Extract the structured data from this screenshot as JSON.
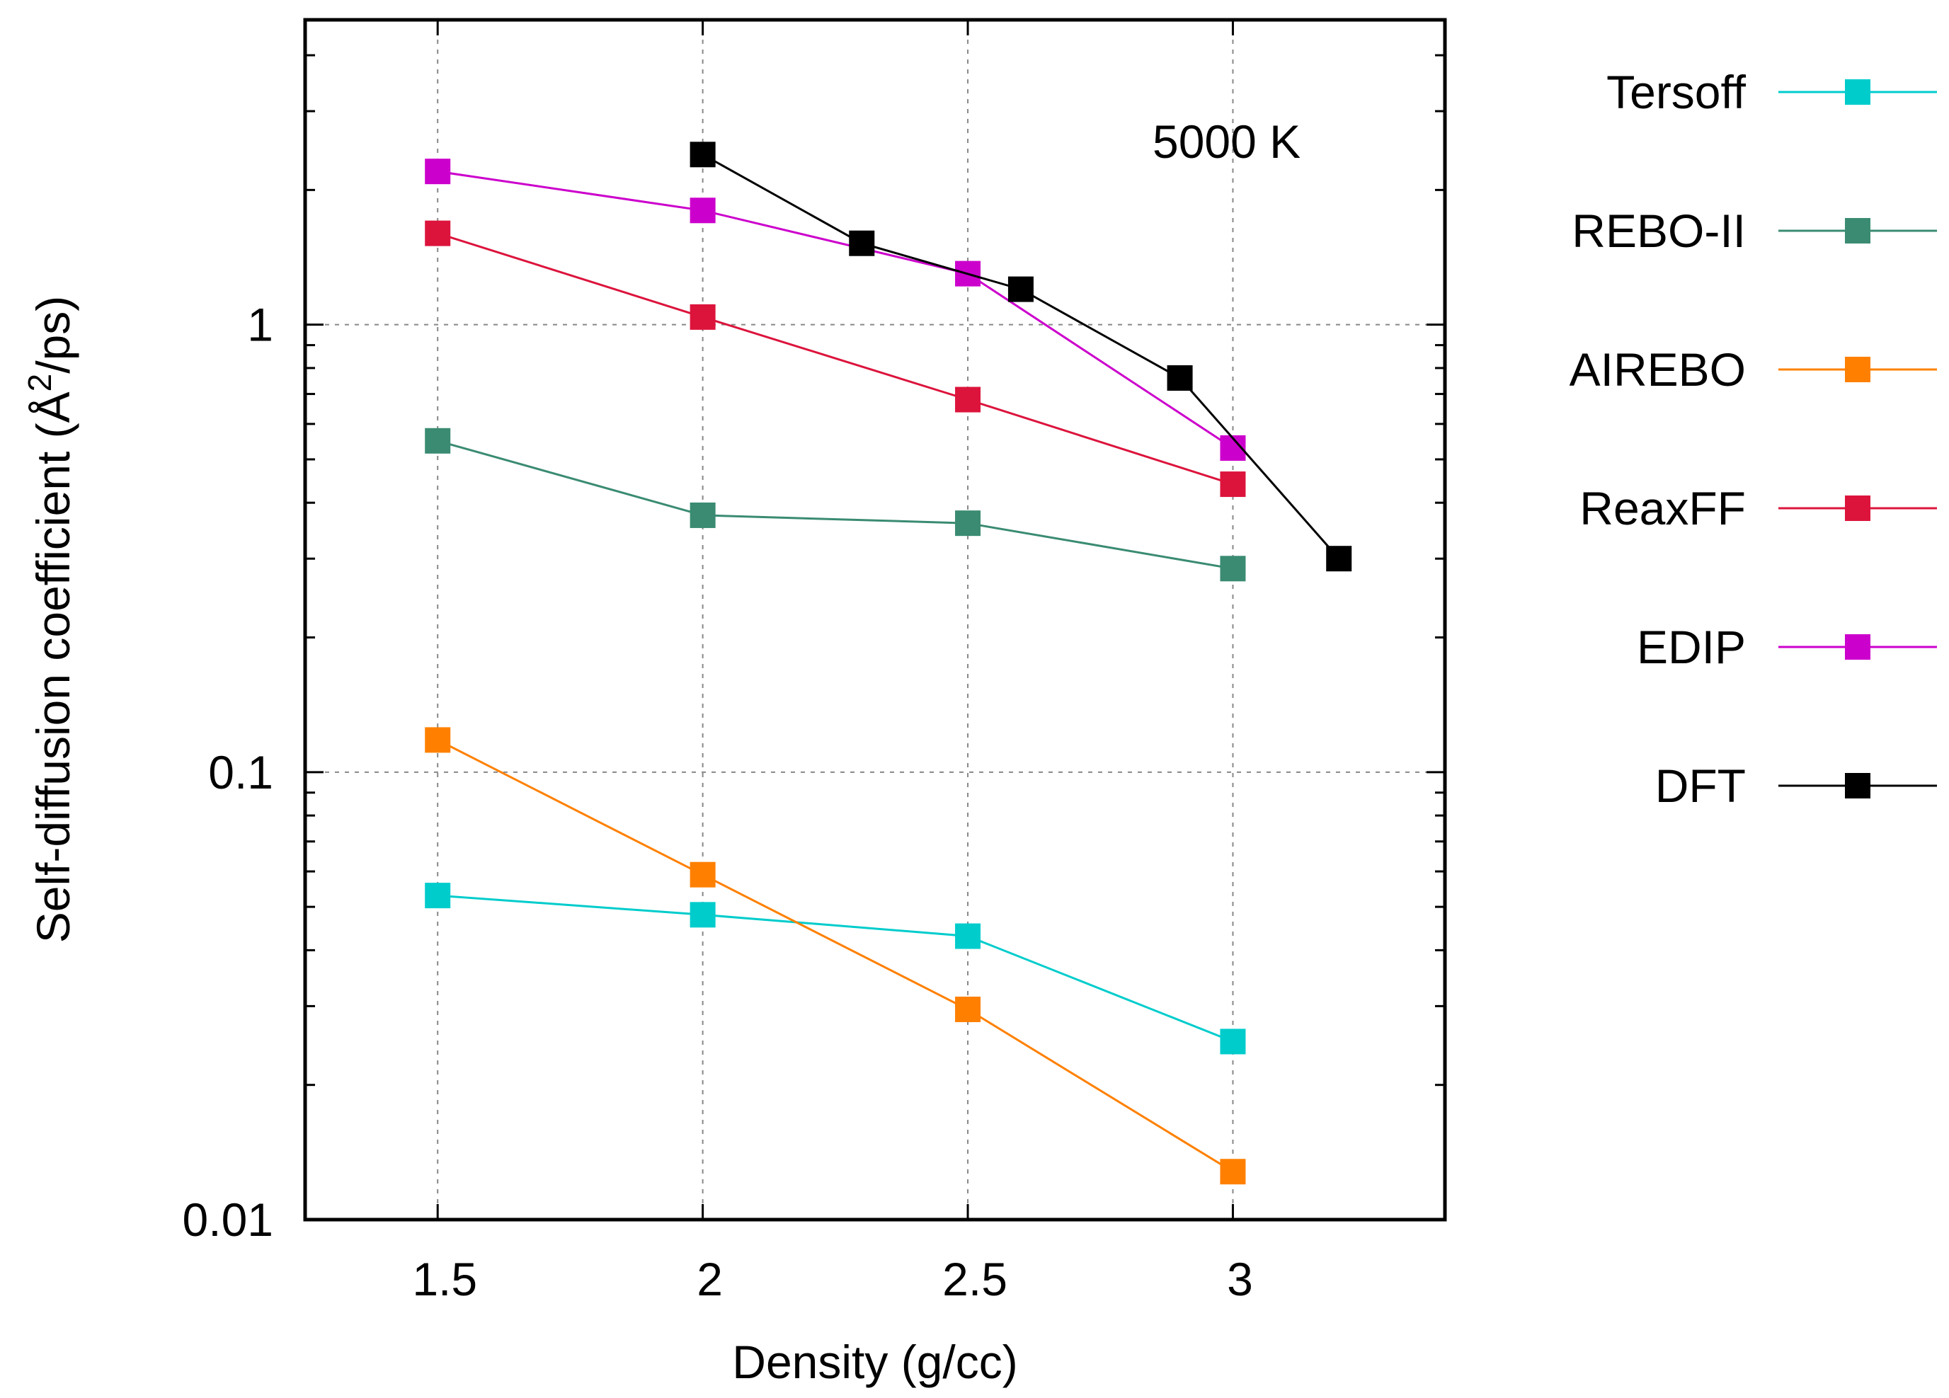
{
  "chart_data": {
    "type": "line",
    "xlabel": "Density (g/cc)",
    "ylabel": "Self-diffusion coefficient (Å²/ps)",
    "ylabel_parts": {
      "pre": "Self-diffusion coefficient (Å",
      "sup": "2",
      "post": "/ps)"
    },
    "annotation": "5000 K",
    "xlim": [
      1.25,
      3.4
    ],
    "ylim": [
      0.01,
      4.8
    ],
    "yscale": "log",
    "grid": true,
    "legend_position": "outside-right",
    "x_ticks": [
      1.5,
      2,
      2.5,
      3
    ],
    "x_tick_labels": [
      "1.5",
      "2",
      "2.5",
      "3"
    ],
    "y_ticks": [
      0.01,
      0.1,
      1
    ],
    "y_tick_labels": [
      "0.01",
      "0.1",
      "1"
    ],
    "series": [
      {
        "name": "Tersoff",
        "color": "#00CCCC",
        "x": [
          1.5,
          2,
          2.5,
          3
        ],
        "y": [
          0.053,
          0.048,
          0.043,
          0.025
        ]
      },
      {
        "name": "REBO-II",
        "color": "#3A8B72",
        "x": [
          1.5,
          2,
          2.5,
          3
        ],
        "y": [
          0.55,
          0.375,
          0.36,
          0.285
        ]
      },
      {
        "name": "AIREBO",
        "color": "#FF8000",
        "x": [
          1.5,
          2,
          2.5,
          3
        ],
        "y": [
          0.118,
          0.059,
          0.0295,
          0.0128
        ]
      },
      {
        "name": "ReaxFF",
        "color": "#DC143C",
        "x": [
          1.5,
          2,
          2.5,
          3
        ],
        "y": [
          1.6,
          1.04,
          0.68,
          0.44
        ]
      },
      {
        "name": "EDIP",
        "color": "#CC00CC",
        "x": [
          1.5,
          2,
          2.5,
          3
        ],
        "y": [
          2.2,
          1.8,
          1.3,
          0.53
        ]
      },
      {
        "name": "DFT",
        "color": "#000000",
        "x": [
          2,
          2.3,
          2.6,
          2.9,
          3.2
        ],
        "y": [
          2.4,
          1.52,
          1.2,
          0.76,
          0.3
        ]
      }
    ]
  }
}
